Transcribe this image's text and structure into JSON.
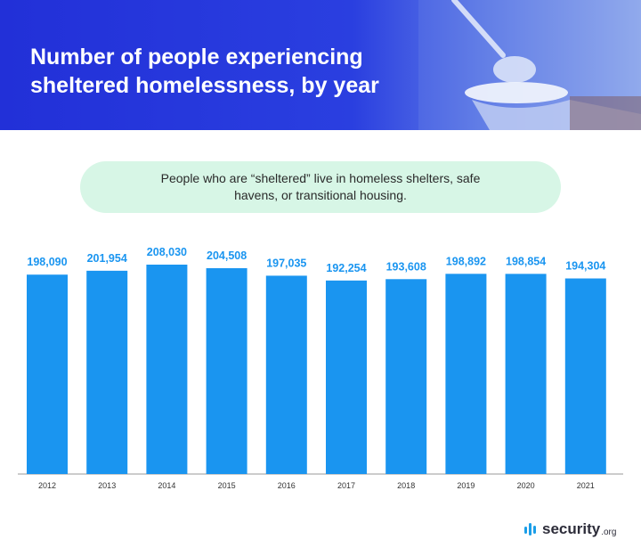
{
  "header": {
    "title": "Number of people experiencing sheltered homelessness, by year"
  },
  "note": {
    "text": "People who are “sheltered” live in homeless shelters, safe havens, or transitional housing."
  },
  "chart_data": {
    "type": "bar",
    "title": "Number of people experiencing sheltered homelessness, by year",
    "categories": [
      "2012",
      "2013",
      "2014",
      "2015",
      "2016",
      "2017",
      "2018",
      "2019",
      "2020",
      "2021"
    ],
    "values": [
      198090,
      201954,
      208030,
      204508,
      197035,
      192254,
      193608,
      198892,
      198854,
      194304
    ],
    "value_labels": [
      "198,090",
      "201,954",
      "208,030",
      "204,508",
      "197,035",
      "192,254",
      "193,608",
      "198,892",
      "198,854",
      "194,304"
    ],
    "xlabel": "",
    "ylabel": "",
    "ylim": [
      0,
      208030
    ],
    "grid": false,
    "bar_color": "#1a95f0",
    "label_color": "#1a95f0"
  },
  "logo": {
    "brand": "security",
    "tld": ".org",
    "colors": {
      "mark": "#1a9ee8",
      "text": "#2d2d3a"
    }
  }
}
